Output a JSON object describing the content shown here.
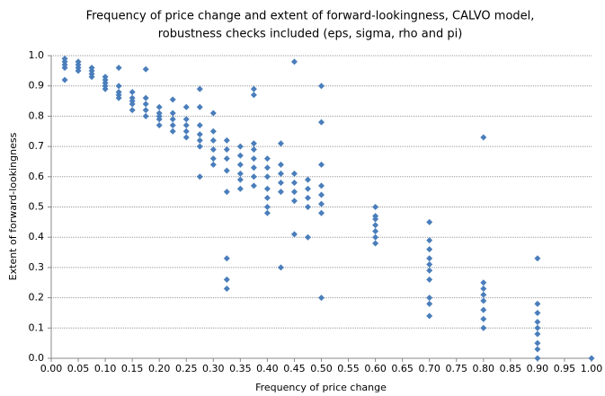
{
  "chart_data": {
    "type": "scatter",
    "title": [
      "Frequency of price change and extent of forward-lookingness, CALVO model,",
      "robustness checks included (eps, sigma, rho and pi)"
    ],
    "x_label": "Frequency of price change",
    "y_label": "Extent of forward-lookingness",
    "color": "#4a7ebb",
    "grid": true,
    "xlim": [
      0,
      1
    ],
    "ylim": [
      0,
      1
    ],
    "xticks": [
      {
        "value": 0,
        "label": "0.00"
      },
      {
        "value": 0.05,
        "label": "0.05"
      },
      {
        "value": 0.1,
        "label": "0.10"
      },
      {
        "value": 0.15,
        "label": "0.15"
      },
      {
        "value": 0.2,
        "label": "0.20"
      },
      {
        "value": 0.25,
        "label": "0.25"
      },
      {
        "value": 0.3,
        "label": "0.30"
      },
      {
        "value": 0.35,
        "label": "0.35"
      },
      {
        "value": 0.4,
        "label": "0.40"
      },
      {
        "value": 0.45,
        "label": "0.45"
      },
      {
        "value": 0.5,
        "label": "0.50"
      },
      {
        "value": 0.55,
        "label": "0.55"
      },
      {
        "value": 0.6,
        "label": "0.60"
      },
      {
        "value": 0.65,
        "label": "0.65"
      },
      {
        "value": 0.7,
        "label": "0.70"
      },
      {
        "value": 0.75,
        "label": "0.75"
      },
      {
        "value": 0.8,
        "label": "0.80"
      },
      {
        "value": 0.85,
        "label": "0.85"
      },
      {
        "value": 0.9,
        "label": "0.90"
      },
      {
        "value": 0.95,
        "label": "0.95"
      },
      {
        "value": 1,
        "label": "1.00"
      }
    ],
    "yticks": [
      {
        "value": 0,
        "label": "0.0"
      },
      {
        "value": 0.1,
        "label": "0.1"
      },
      {
        "value": 0.2,
        "label": "0.2"
      },
      {
        "value": 0.3,
        "label": "0.3"
      },
      {
        "value": 0.4,
        "label": "0.4"
      },
      {
        "value": 0.5,
        "label": "0.5"
      },
      {
        "value": 0.6,
        "label": "0.6"
      },
      {
        "value": 0.7,
        "label": "0.7"
      },
      {
        "value": 0.8,
        "label": "0.8"
      },
      {
        "value": 0.9,
        "label": "0.9"
      },
      {
        "value": 1,
        "label": "1.0"
      }
    ],
    "x": [
      0.025,
      0.025,
      0.025,
      0.025,
      0.025,
      0.05,
      0.05,
      0.05,
      0.05,
      0.075,
      0.075,
      0.075,
      0.075,
      0.1,
      0.1,
      0.1,
      0.1,
      0.1,
      0.125,
      0.125,
      0.125,
      0.125,
      0.125,
      0.15,
      0.15,
      0.15,
      0.15,
      0.15,
      0.175,
      0.175,
      0.175,
      0.175,
      0.175,
      0.2,
      0.2,
      0.2,
      0.2,
      0.2,
      0.225,
      0.225,
      0.225,
      0.225,
      0.225,
      0.25,
      0.25,
      0.25,
      0.25,
      0.25,
      0.275,
      0.275,
      0.275,
      0.275,
      0.275,
      0.275,
      0.275,
      0.3,
      0.3,
      0.3,
      0.3,
      0.3,
      0.3,
      0.325,
      0.325,
      0.325,
      0.325,
      0.325,
      0.325,
      0.325,
      0.325,
      0.35,
      0.35,
      0.35,
      0.35,
      0.35,
      0.35,
      0.375,
      0.375,
      0.375,
      0.375,
      0.375,
      0.375,
      0.375,
      0.375,
      0.4,
      0.4,
      0.4,
      0.4,
      0.4,
      0.4,
      0.4,
      0.425,
      0.425,
      0.425,
      0.425,
      0.425,
      0.425,
      0.45,
      0.45,
      0.45,
      0.45,
      0.45,
      0.45,
      0.475,
      0.475,
      0.475,
      0.475,
      0.475,
      0.5,
      0.5,
      0.5,
      0.5,
      0.5,
      0.5,
      0.5,
      0.5,
      0.6,
      0.6,
      0.6,
      0.6,
      0.6,
      0.6,
      0.6,
      0.7,
      0.7,
      0.7,
      0.7,
      0.7,
      0.7,
      0.7,
      0.7,
      0.7,
      0.7,
      0.8,
      0.8,
      0.8,
      0.8,
      0.8,
      0.8,
      0.8,
      0.8,
      0.9,
      0.9,
      0.9,
      0.9,
      0.9,
      0.9,
      0.9,
      0.9,
      0.9,
      1.0
    ],
    "values": [
      0.99,
      0.98,
      0.97,
      0.96,
      0.92,
      0.98,
      0.96,
      0.95,
      0.97,
      0.96,
      0.94,
      0.93,
      0.95,
      0.93,
      0.91,
      0.89,
      0.9,
      0.92,
      0.9,
      0.88,
      0.86,
      0.96,
      0.87,
      0.88,
      0.86,
      0.84,
      0.82,
      0.85,
      0.86,
      0.84,
      0.82,
      0.8,
      0.955,
      0.83,
      0.81,
      0.79,
      0.77,
      0.8,
      0.81,
      0.79,
      0.77,
      0.75,
      0.855,
      0.79,
      0.77,
      0.75,
      0.73,
      0.83,
      0.77,
      0.74,
      0.72,
      0.7,
      0.89,
      0.6,
      0.83,
      0.75,
      0.72,
      0.69,
      0.66,
      0.81,
      0.64,
      0.72,
      0.69,
      0.66,
      0.62,
      0.55,
      0.33,
      0.26,
      0.23,
      0.7,
      0.67,
      0.64,
      0.61,
      0.59,
      0.56,
      0.69,
      0.66,
      0.63,
      0.6,
      0.57,
      0.89,
      0.87,
      0.71,
      0.66,
      0.63,
      0.6,
      0.56,
      0.53,
      0.5,
      0.48,
      0.64,
      0.61,
      0.58,
      0.55,
      0.71,
      0.3,
      0.61,
      0.58,
      0.55,
      0.52,
      0.98,
      0.41,
      0.59,
      0.56,
      0.53,
      0.5,
      0.4,
      0.57,
      0.54,
      0.51,
      0.48,
      0.9,
      0.78,
      0.64,
      0.2,
      0.5,
      0.47,
      0.44,
      0.42,
      0.4,
      0.38,
      0.46,
      0.45,
      0.39,
      0.36,
      0.33,
      0.31,
      0.29,
      0.26,
      0.2,
      0.18,
      0.14,
      0.73,
      0.25,
      0.23,
      0.21,
      0.19,
      0.16,
      0.13,
      0.1,
      0.33,
      0.18,
      0.15,
      0.12,
      0.1,
      0.08,
      0.05,
      0.03,
      0.0,
      0.0
    ]
  }
}
